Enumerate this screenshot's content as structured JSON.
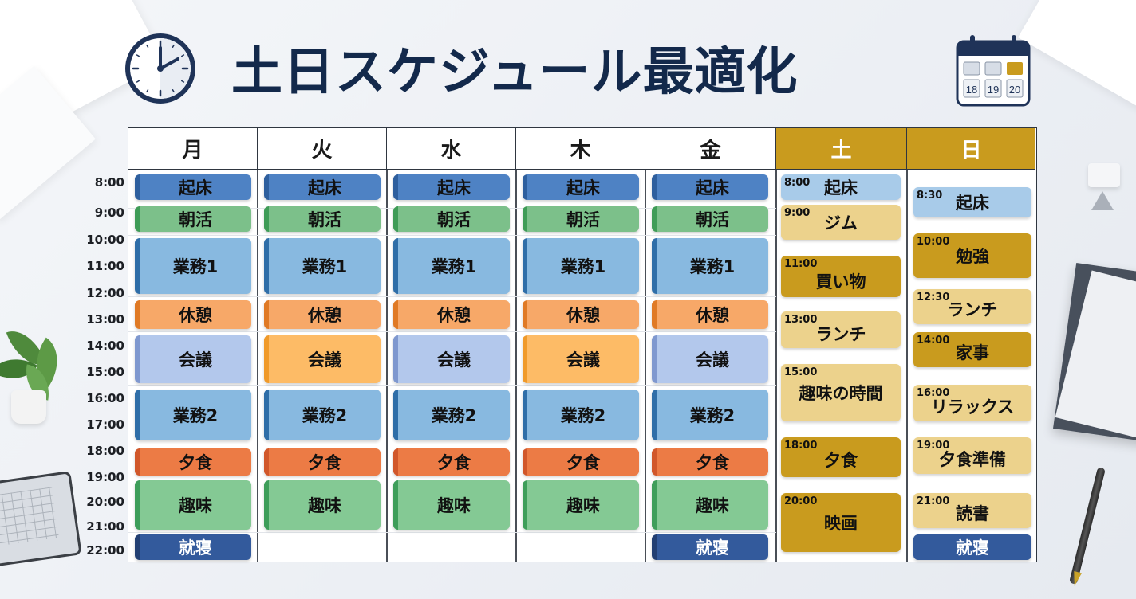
{
  "title": "土日スケジュール最適化",
  "calendar_icon": {
    "dates": [
      "18",
      "19",
      "20"
    ]
  },
  "colors": {
    "title": "#13294b",
    "weekend_header": "#c99b1e",
    "wake": "#4e82c4",
    "morning": "#7cc08a",
    "work": "#88b9e0",
    "break": "#f7a868",
    "dinner": "#ec7b45",
    "hobby": "#84c994",
    "sleep": "#335a9c"
  },
  "days": [
    "月",
    "火",
    "水",
    "木",
    "金",
    "土",
    "日"
  ],
  "times": [
    "8:00",
    "9:00",
    "10:00",
    "11:00",
    "12:00",
    "13:00",
    "14:00",
    "15:00",
    "16:00",
    "17:00",
    "18:00",
    "19:00",
    "20:00",
    "21:00",
    "22:00"
  ],
  "weekday_events": {
    "mon": [
      "起床",
      "朝活",
      "業務1",
      "休憩",
      "会議",
      "業務2",
      "夕食",
      "趣味",
      "就寝"
    ],
    "tue": [
      "起床",
      "朝活",
      "業務1",
      "休憩",
      "会議",
      "業務2",
      "夕食",
      "趣味"
    ],
    "wed": [
      "起床",
      "朝活",
      "業務1",
      "休憩",
      "会議",
      "業務2",
      "夕食",
      "趣味"
    ],
    "thu": [
      "起床",
      "朝活",
      "業務1",
      "休憩",
      "会議",
      "業務2",
      "夕食",
      "趣味"
    ],
    "fri": [
      "起床",
      "朝活",
      "業務1",
      "休憩",
      "会議",
      "業務2",
      "夕食",
      "趣味",
      "就寝"
    ]
  },
  "saturday": [
    {
      "time": "8:00",
      "label": "起床"
    },
    {
      "time": "9:00",
      "label": "ジム"
    },
    {
      "time": "11:00",
      "label": "買い物"
    },
    {
      "time": "13:00",
      "label": "ランチ"
    },
    {
      "time": "15:00",
      "label": "趣味の時間"
    },
    {
      "time": "18:00",
      "label": "夕食"
    },
    {
      "time": "20:00",
      "label": "映画"
    }
  ],
  "sunday": [
    {
      "time": "8:30",
      "label": "起床"
    },
    {
      "time": "10:00",
      "label": "勉強"
    },
    {
      "time": "12:30",
      "label": "ランチ"
    },
    {
      "time": "14:00",
      "label": "家事"
    },
    {
      "time": "16:00",
      "label": "リラックス"
    },
    {
      "time": "19:00",
      "label": "夕食準備"
    },
    {
      "time": "21:00",
      "label": "読書"
    },
    {
      "time": "",
      "label": "就寝"
    }
  ]
}
